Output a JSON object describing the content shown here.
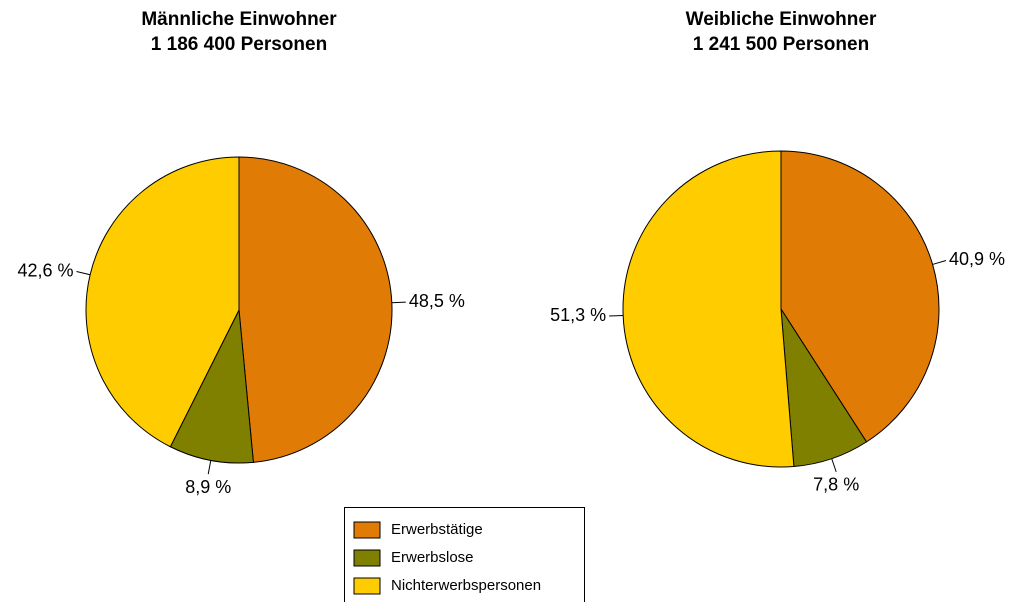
{
  "chart_data": [
    {
      "type": "pie",
      "title": "Männliche Einwohner",
      "subtitle": "1 186 400 Personen",
      "categories": [
        "Erwerbstätige",
        "Erwerbslose",
        "Nichterwerbspersonen"
      ],
      "values": [
        48.5,
        8.9,
        42.6
      ],
      "value_labels": [
        "48,5 %",
        "8,9 %",
        "42,6 %"
      ],
      "colors": [
        "#e07b05",
        "#808000",
        "#ffcc00"
      ],
      "legend": "bottom"
    },
    {
      "type": "pie",
      "title": "Weibliche Einwohner",
      "subtitle": "1 241 500 Personen",
      "categories": [
        "Erwerbstätige",
        "Erwerbslose",
        "Nichterwerbspersonen"
      ],
      "values": [
        40.9,
        7.8,
        51.3
      ],
      "value_labels": [
        "40,9 %",
        "7,8 %",
        "51,3 %"
      ],
      "colors": [
        "#e07b05",
        "#808000",
        "#ffcc00"
      ],
      "legend": "bottom"
    }
  ]
}
